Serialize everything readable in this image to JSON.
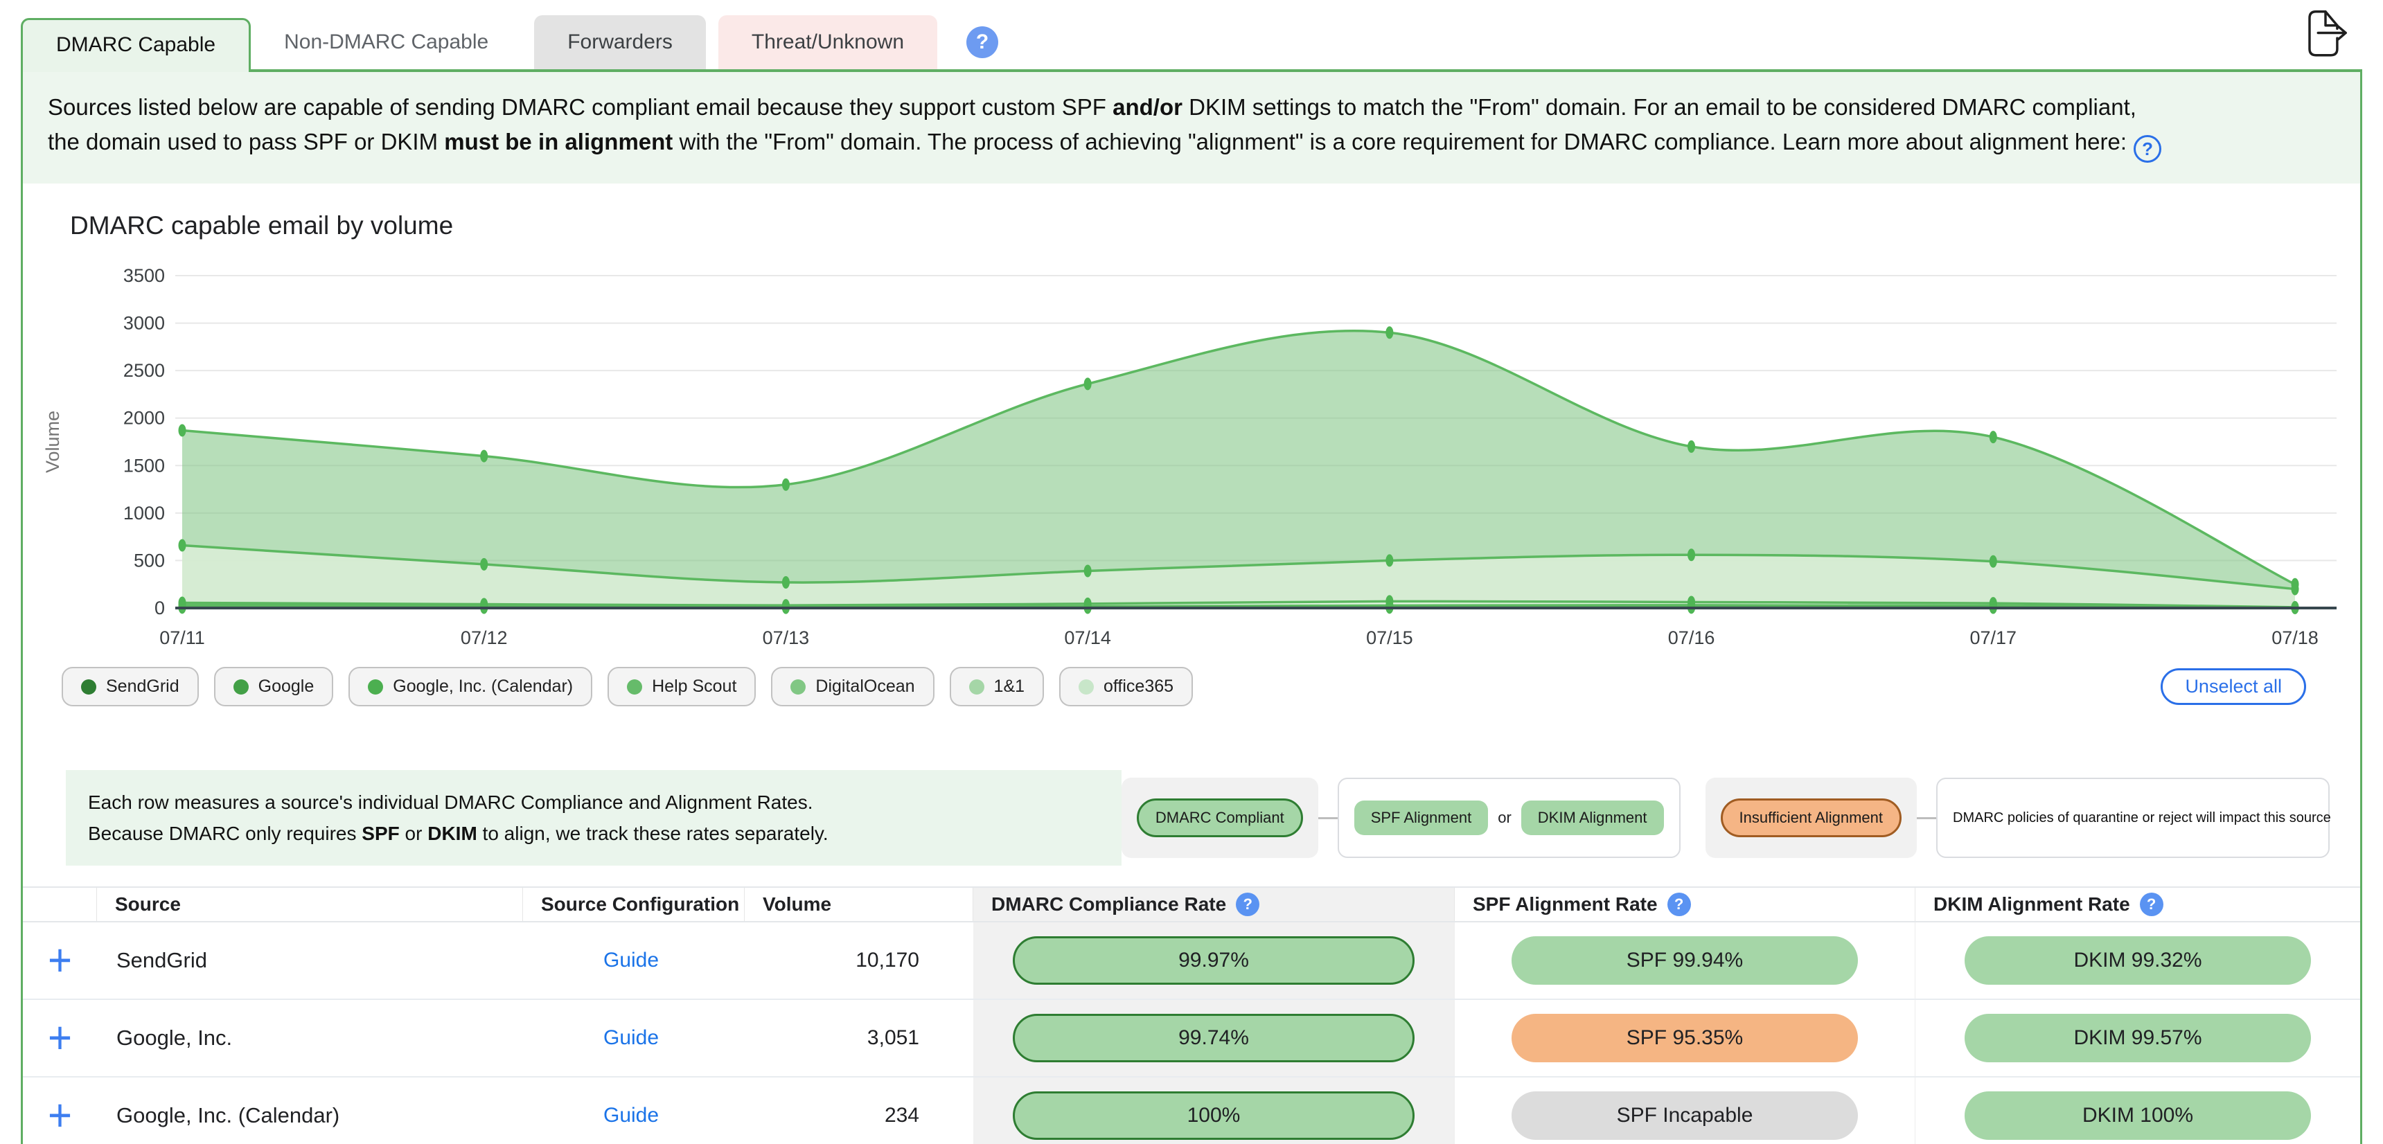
{
  "tabs": [
    {
      "label": "DMARC Capable",
      "variant": "active"
    },
    {
      "label": "Non-DMARC Capable",
      "variant": "plain"
    },
    {
      "label": "Forwarders",
      "variant": "gray"
    },
    {
      "label": "Threat/Unknown",
      "variant": "red"
    }
  ],
  "description": {
    "l1a": "Sources listed below are capable of sending DMARC compliant email because they support custom SPF ",
    "l1b": "and/or",
    "l1c": " DKIM settings to match the \"From\" domain. For an email to be considered DMARC compliant,",
    "l2a": "the domain used to pass SPF or DKIM ",
    "l2b": "must be in alignment",
    "l2c": " with the \"From\" domain. The process of achieving \"alignment\" is a core requirement for DMARC compliance. Learn more about alignment here:"
  },
  "chart_data": {
    "type": "area",
    "title": "DMARC capable email by volume",
    "ylabel": "Volume",
    "x": [
      "07/11",
      "07/12",
      "07/13",
      "07/14",
      "07/15",
      "07/16",
      "07/17",
      "07/18"
    ],
    "ylim": [
      0,
      3500
    ],
    "ytick_step": 500,
    "grid": "horizontal",
    "legend_position": "bottom",
    "line_color": "#5cb860",
    "marker_color": "#4fb554",
    "series": [
      {
        "name": "SendGrid",
        "values": [
          1870,
          1600,
          1300,
          2360,
          2900,
          1700,
          1800,
          250
        ],
        "fill": "rgba(124,195,127,0.55)"
      },
      {
        "name": "Google",
        "values": [
          660,
          460,
          270,
          390,
          500,
          560,
          490,
          200
        ],
        "fill": "rgba(215,236,212,0.95)"
      },
      {
        "name": "Google, Inc. (Calendar)",
        "values": [
          55,
          40,
          28,
          45,
          70,
          62,
          50,
          8
        ],
        "fill": "rgba(228,244,226,0.95)"
      },
      {
        "name": "Help Scout",
        "values": [
          30,
          22,
          14,
          18,
          26,
          30,
          24,
          5
        ],
        "fill": "rgba(234,247,232,0.95)"
      },
      {
        "name": "DigitalOcean",
        "values": [
          14,
          11,
          8,
          10,
          13,
          15,
          11,
          3
        ],
        "fill": "rgba(239,249,238,0.95)"
      },
      {
        "name": "1&1",
        "values": [
          8,
          6,
          5,
          6,
          7,
          8,
          6,
          2
        ],
        "fill": "rgba(243,250,242,0.95)"
      },
      {
        "name": "office365",
        "values": [
          5,
          4,
          3,
          4,
          5,
          5,
          4,
          1
        ],
        "fill": "rgba(247,252,246,0.95)"
      }
    ]
  },
  "legend_chips": [
    {
      "label": "SendGrid",
      "color": "#2e7d32"
    },
    {
      "label": "Google",
      "color": "#43a047"
    },
    {
      "label": "Google, Inc. (Calendar)",
      "color": "#4caf50"
    },
    {
      "label": "Help Scout",
      "color": "#66bb6a"
    },
    {
      "label": "DigitalOcean",
      "color": "#81c784"
    },
    {
      "label": "1&1",
      "color": "#a5d6a7"
    },
    {
      "label": "office365",
      "color": "#c8e6c9"
    }
  ],
  "unselect_all": "Unselect all",
  "info_note": {
    "l1": "Each row measures a source's individual DMARC Compliance and Alignment Rates.",
    "l2a": "Because DMARC only requires ",
    "l2b": "SPF",
    "l2c": " or ",
    "l2d": "DKIM",
    "l2e": " to align, we track these rates separately."
  },
  "flow_legend": {
    "compliant": "DMARC Compliant",
    "spf": "SPF Alignment",
    "or": "or",
    "dkim": "DKIM Alignment",
    "insufficient": "Insufficient Alignment",
    "note": "DMARC policies of quarantine or reject will impact this source"
  },
  "table": {
    "headers": [
      "Source",
      "Source Configuration",
      "Volume",
      "DMARC Compliance Rate",
      "SPF Alignment Rate",
      "DKIM Alignment Rate"
    ],
    "rows": [
      {
        "source": "SendGrid",
        "guide": "Guide",
        "volume": "10,170",
        "compliance": {
          "text": "99.97%",
          "style": "compliant"
        },
        "spf": {
          "text": "SPF 99.94%",
          "style": "green"
        },
        "dkim": {
          "text": "DKIM 99.32%",
          "style": "green"
        }
      },
      {
        "source": "Google, Inc.",
        "guide": "Guide",
        "volume": "3,051",
        "compliance": {
          "text": "99.74%",
          "style": "compliant"
        },
        "spf": {
          "text": "SPF 95.35%",
          "style": "orange"
        },
        "dkim": {
          "text": "DKIM 99.57%",
          "style": "green"
        }
      },
      {
        "source": "Google, Inc. (Calendar)",
        "guide": "Guide",
        "volume": "234",
        "compliance": {
          "text": "100%",
          "style": "compliant"
        },
        "spf": {
          "text": "SPF Incapable",
          "style": "gray"
        },
        "dkim": {
          "text": "DKIM 100%",
          "style": "green"
        }
      }
    ]
  },
  "colors": {
    "accent_green": "#5fae63",
    "pill_green": "#a5d6a7",
    "pill_green_border": "#2e7d32",
    "pill_orange": "#f5b583",
    "pill_gray": "#dcdcdc",
    "link_blue": "#1a73e8",
    "help_blue": "#6d9bf1"
  }
}
